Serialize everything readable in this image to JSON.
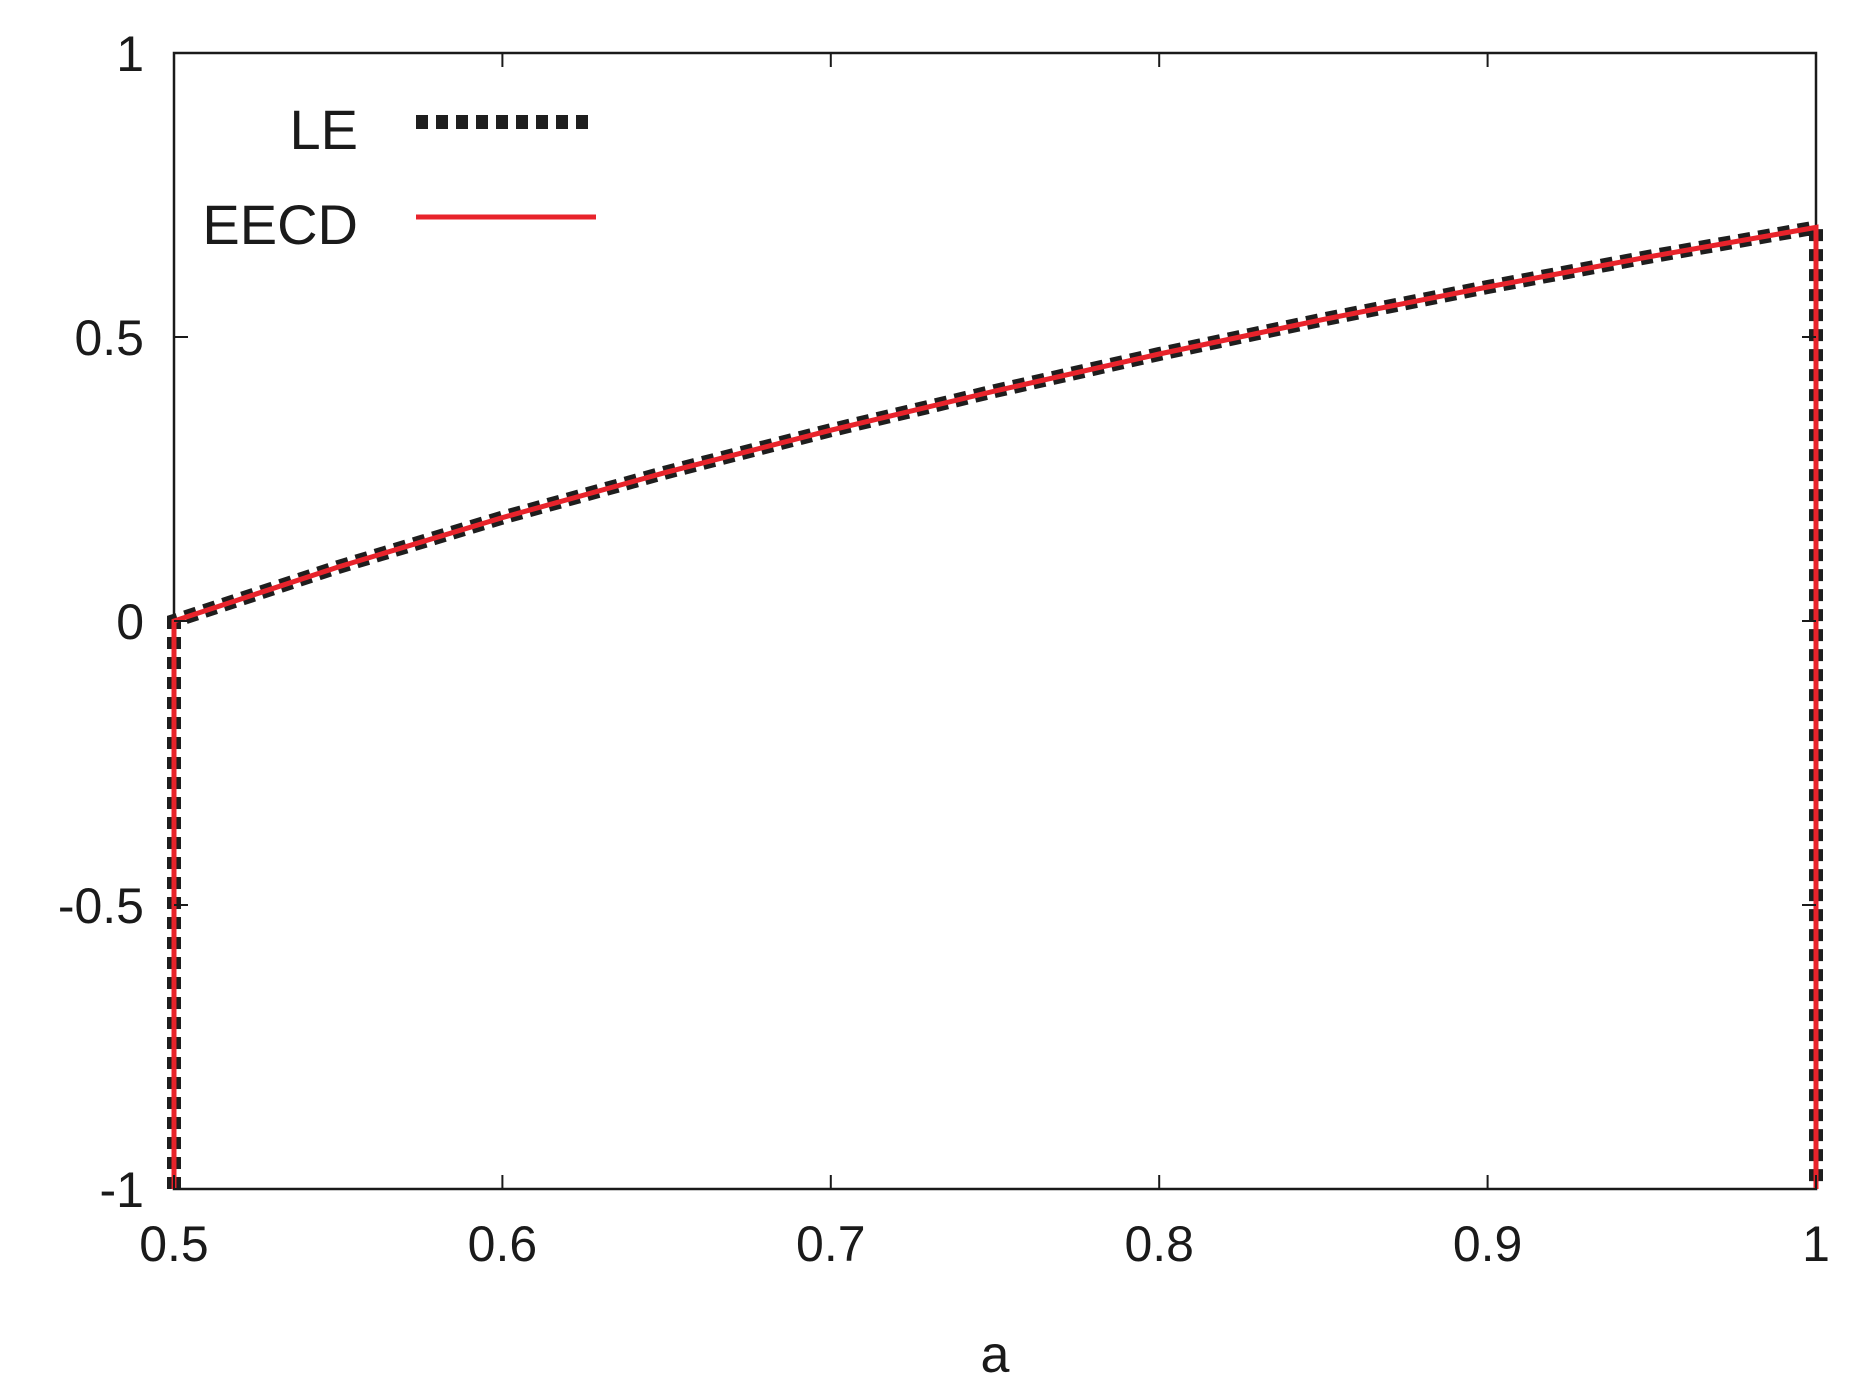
{
  "chart_data": {
    "type": "line",
    "title": "",
    "xlabel": "a",
    "ylabel": "",
    "xlim": [
      0.5,
      1.0
    ],
    "ylim": [
      -1.0,
      1.0
    ],
    "x_ticks": [
      0.5,
      0.6,
      0.7,
      0.8,
      0.9,
      1.0
    ],
    "x_tick_labels": [
      "0.5",
      "0.6",
      "0.7",
      "0.8",
      "0.9",
      "1"
    ],
    "y_ticks": [
      -1.0,
      -0.5,
      0.0,
      0.5,
      1.0
    ],
    "y_tick_labels": [
      "-1",
      "-0.5",
      "0",
      "0.5",
      "1"
    ],
    "grid": false,
    "legend_position": "top-left",
    "series": [
      {
        "name": "LE",
        "color": "#1e1e1e",
        "style": "dotted-thick",
        "x": [
          0.5,
          0.5,
          0.55,
          0.6,
          0.65,
          0.7,
          0.75,
          0.8,
          0.85,
          0.9,
          0.95,
          1.0,
          1.0
        ],
        "y": [
          -1.0,
          0.0,
          0.095,
          0.182,
          0.262,
          0.336,
          0.405,
          0.47,
          0.531,
          0.588,
          0.642,
          0.693,
          -1.0
        ]
      },
      {
        "name": "EECD",
        "color": "#e8232b",
        "style": "solid",
        "x": [
          0.5,
          0.5,
          0.55,
          0.6,
          0.65,
          0.7,
          0.75,
          0.8,
          0.85,
          0.9,
          0.95,
          1.0,
          1.0
        ],
        "y": [
          -1.0,
          0.0,
          0.095,
          0.182,
          0.262,
          0.336,
          0.405,
          0.47,
          0.531,
          0.588,
          0.642,
          0.693,
          -1.0
        ]
      }
    ]
  }
}
